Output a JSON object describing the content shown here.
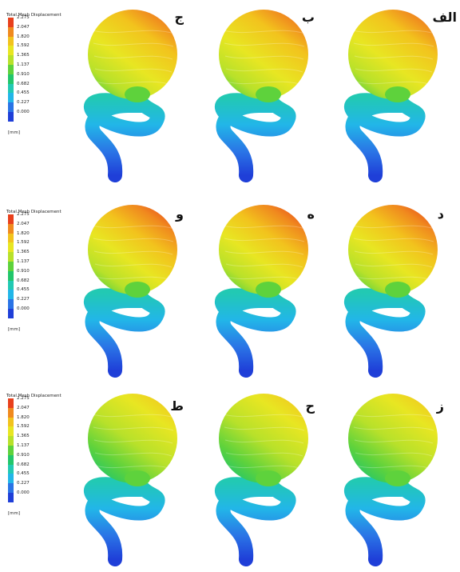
{
  "legend": {
    "title": "Total Mesh Displacement",
    "values": [
      "2.275",
      "2.047",
      "1.820",
      "1.592",
      "1.365",
      "1.137",
      "0.910",
      "0.682",
      "0.455",
      "0.227",
      "0.000"
    ],
    "unit": "[mm]",
    "colors": [
      "#e8401c",
      "#f08a1e",
      "#f2c31d",
      "#e8e622",
      "#b8e12a",
      "#5ed23c",
      "#22c66b",
      "#22c9b3",
      "#22b6e8",
      "#2a74e6",
      "#1f3fd8"
    ]
  },
  "panels": [
    {
      "label": "الف",
      "level": 0.85
    },
    {
      "label": "ب",
      "level": 0.85
    },
    {
      "label": "ج",
      "level": 0.85
    },
    {
      "label": "د",
      "level": 0.95
    },
    {
      "label": "ه",
      "level": 0.95
    },
    {
      "label": "و",
      "level": 0.95
    },
    {
      "label": "ز",
      "level": 0.55
    },
    {
      "label": "ح",
      "level": 0.55
    },
    {
      "label": "ط",
      "level": 0.55
    }
  ]
}
